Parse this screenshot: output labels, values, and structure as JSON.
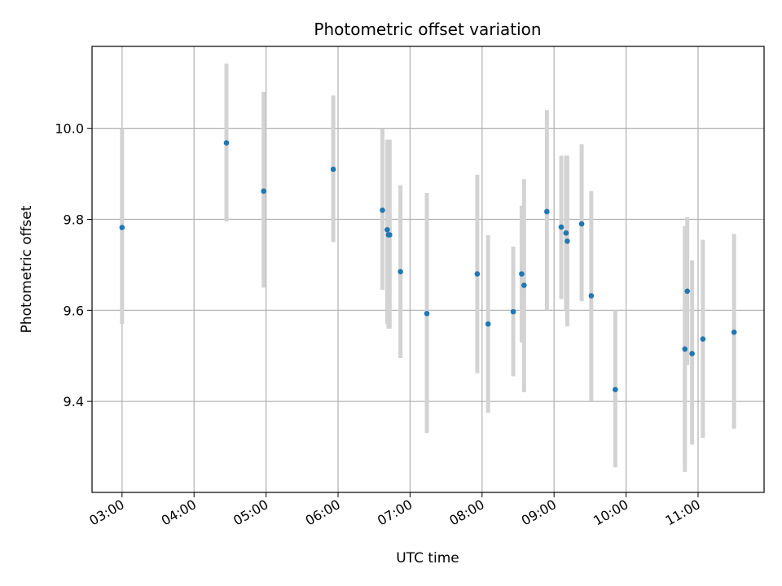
{
  "chart_data": {
    "type": "scatter",
    "title": "Photometric offset variation",
    "xlabel": "UTC time",
    "ylabel": "Photometric offset",
    "x_ticks": [
      "03:00",
      "04:00",
      "05:00",
      "06:00",
      "07:00",
      "08:00",
      "09:00",
      "10:00",
      "11:00"
    ],
    "y_ticks": [
      "9.4",
      "9.6",
      "9.8",
      "10.0"
    ],
    "xlim": [
      "02:35",
      "11:55"
    ],
    "ylim": [
      9.2,
      10.18
    ],
    "grid": true,
    "errorbar_color": "#d3d3d3",
    "point_color": "#1f77b4",
    "points": [
      {
        "x": "03:00",
        "y": 9.782,
        "ylo": 9.57,
        "yhi": 10.0
      },
      {
        "x": "04:27",
        "y": 9.968,
        "ylo": 9.795,
        "yhi": 10.142
      },
      {
        "x": "04:58",
        "y": 9.862,
        "ylo": 9.65,
        "yhi": 10.08
      },
      {
        "x": "05:56",
        "y": 9.91,
        "ylo": 9.75,
        "yhi": 10.072
      },
      {
        "x": "06:37",
        "y": 9.82,
        "ylo": 9.645,
        "yhi": 10.0
      },
      {
        "x": "06:41",
        "y": 9.777,
        "ylo": 9.57,
        "yhi": 9.975
      },
      {
        "x": "06:42",
        "y": 9.766,
        "ylo": 9.56,
        "yhi": 9.975
      },
      {
        "x": "06:43",
        "y": 9.766,
        "ylo": 9.56,
        "yhi": 9.975
      },
      {
        "x": "06:52",
        "y": 9.685,
        "ylo": 9.495,
        "yhi": 9.875
      },
      {
        "x": "07:14",
        "y": 9.593,
        "ylo": 9.33,
        "yhi": 9.858
      },
      {
        "x": "07:56",
        "y": 9.68,
        "ylo": 9.462,
        "yhi": 9.898
      },
      {
        "x": "08:05",
        "y": 9.57,
        "ylo": 9.375,
        "yhi": 9.765
      },
      {
        "x": "08:26",
        "y": 9.597,
        "ylo": 9.455,
        "yhi": 9.74
      },
      {
        "x": "08:33",
        "y": 9.68,
        "ylo": 9.53,
        "yhi": 9.83
      },
      {
        "x": "08:35",
        "y": 9.655,
        "ylo": 9.42,
        "yhi": 9.888
      },
      {
        "x": "08:54",
        "y": 9.817,
        "ylo": 9.6,
        "yhi": 10.04
      },
      {
        "x": "09:06",
        "y": 9.783,
        "ylo": 9.625,
        "yhi": 9.94
      },
      {
        "x": "09:10",
        "y": 9.77,
        "ylo": 9.6,
        "yhi": 9.94
      },
      {
        "x": "09:11",
        "y": 9.752,
        "ylo": 9.565,
        "yhi": 9.94
      },
      {
        "x": "09:23",
        "y": 9.79,
        "ylo": 9.62,
        "yhi": 9.965
      },
      {
        "x": "09:31",
        "y": 9.632,
        "ylo": 9.4,
        "yhi": 9.862
      },
      {
        "x": "09:51",
        "y": 9.426,
        "ylo": 9.255,
        "yhi": 9.6
      },
      {
        "x": "10:49",
        "y": 9.515,
        "ylo": 9.245,
        "yhi": 9.785
      },
      {
        "x": "10:51",
        "y": 9.642,
        "ylo": 9.48,
        "yhi": 9.805
      },
      {
        "x": "10:55",
        "y": 9.505,
        "ylo": 9.305,
        "yhi": 9.71
      },
      {
        "x": "11:04",
        "y": 9.537,
        "ylo": 9.32,
        "yhi": 9.755
      },
      {
        "x": "11:30",
        "y": 9.552,
        "ylo": 9.34,
        "yhi": 9.768
      }
    ]
  }
}
